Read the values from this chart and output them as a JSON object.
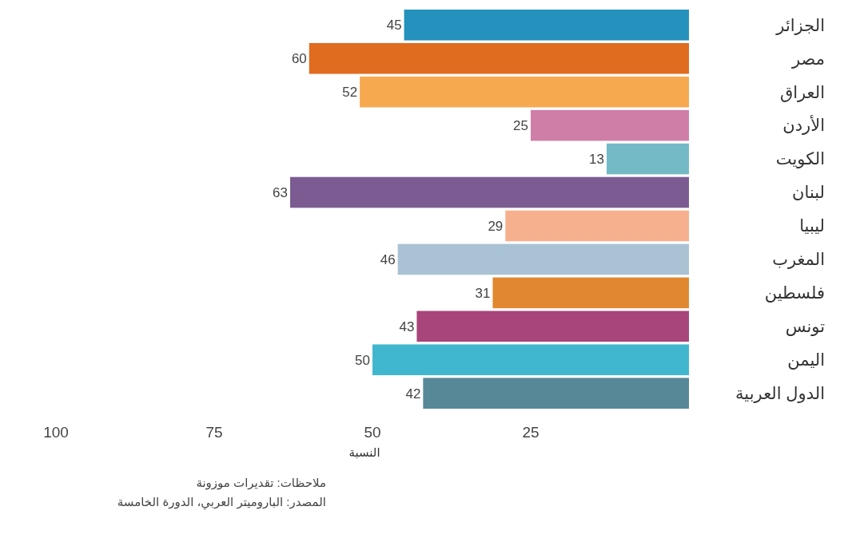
{
  "chart_data": {
    "type": "bar",
    "orientation": "horizontal",
    "categories": [
      "الجزائر",
      "مصر",
      "العراق",
      "الأردن",
      "الكويت",
      "لبنان",
      "ليبيا",
      "المغرب",
      "فلسطين",
      "تونس",
      "اليمن",
      "الدول العربية"
    ],
    "values": [
      45,
      60,
      52,
      25,
      13,
      63,
      29,
      46,
      31,
      43,
      50,
      42
    ],
    "colors": [
      "#2592bd",
      "#e06c1f",
      "#f7a950",
      "#cf7ea8",
      "#73b9c6",
      "#7b5b91",
      "#f6b08d",
      "#a9c2d4",
      "#e0872f",
      "#a8457a",
      "#41b7cf",
      "#578897"
    ],
    "xlim": [
      100,
      0
    ],
    "xticks": [
      100,
      75,
      50,
      25
    ],
    "xlabel": "النسبة",
    "data_labels": true,
    "grid": false,
    "annotations": [
      "ملاحظات: تقديرات موزونة",
      "المصدر: الباروميتر العربي، الدورة الخامسة"
    ]
  }
}
